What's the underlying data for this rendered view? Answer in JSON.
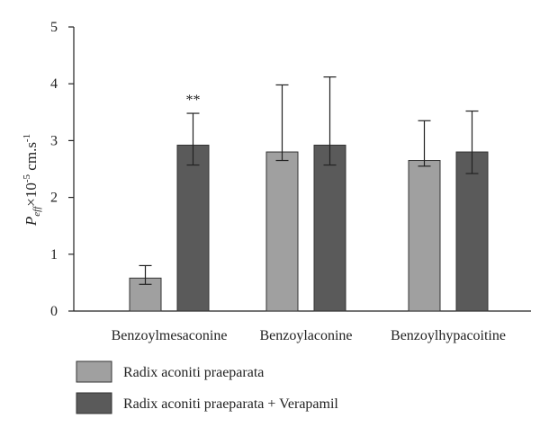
{
  "chart_data": {
    "type": "bar",
    "categories": [
      "Benzoylmesaconine",
      "Benzoylaconine",
      "Benzoylhypacoitine"
    ],
    "series": [
      {
        "name": "Radix aconiti praeparata",
        "values": [
          0.58,
          2.8,
          2.65
        ],
        "error_low": [
          0.47,
          2.65,
          2.55
        ],
        "error_high": [
          0.8,
          3.98,
          3.35
        ],
        "color": "#a0a0a0"
      },
      {
        "name": "Radix aconiti praeparata + Verapamil",
        "values": [
          2.92,
          2.92,
          2.8
        ],
        "error_low": [
          2.57,
          2.57,
          2.42
        ],
        "error_high": [
          3.48,
          4.12,
          3.52
        ],
        "color": "#5a5a5a"
      }
    ],
    "ylabel": {
      "main": "P",
      "sub": "eff",
      "mid": "×10",
      "sup": "-5",
      "unit": " cm.s",
      "unit_sup": "-1"
    },
    "ylim": [
      0,
      5
    ],
    "yticks": [
      "0",
      "1",
      "2",
      "3",
      "4",
      "5"
    ],
    "annotations": [
      {
        "series": 1,
        "category": 0,
        "text": "**"
      }
    ],
    "grid": false,
    "legend_position": "bottom-left"
  }
}
